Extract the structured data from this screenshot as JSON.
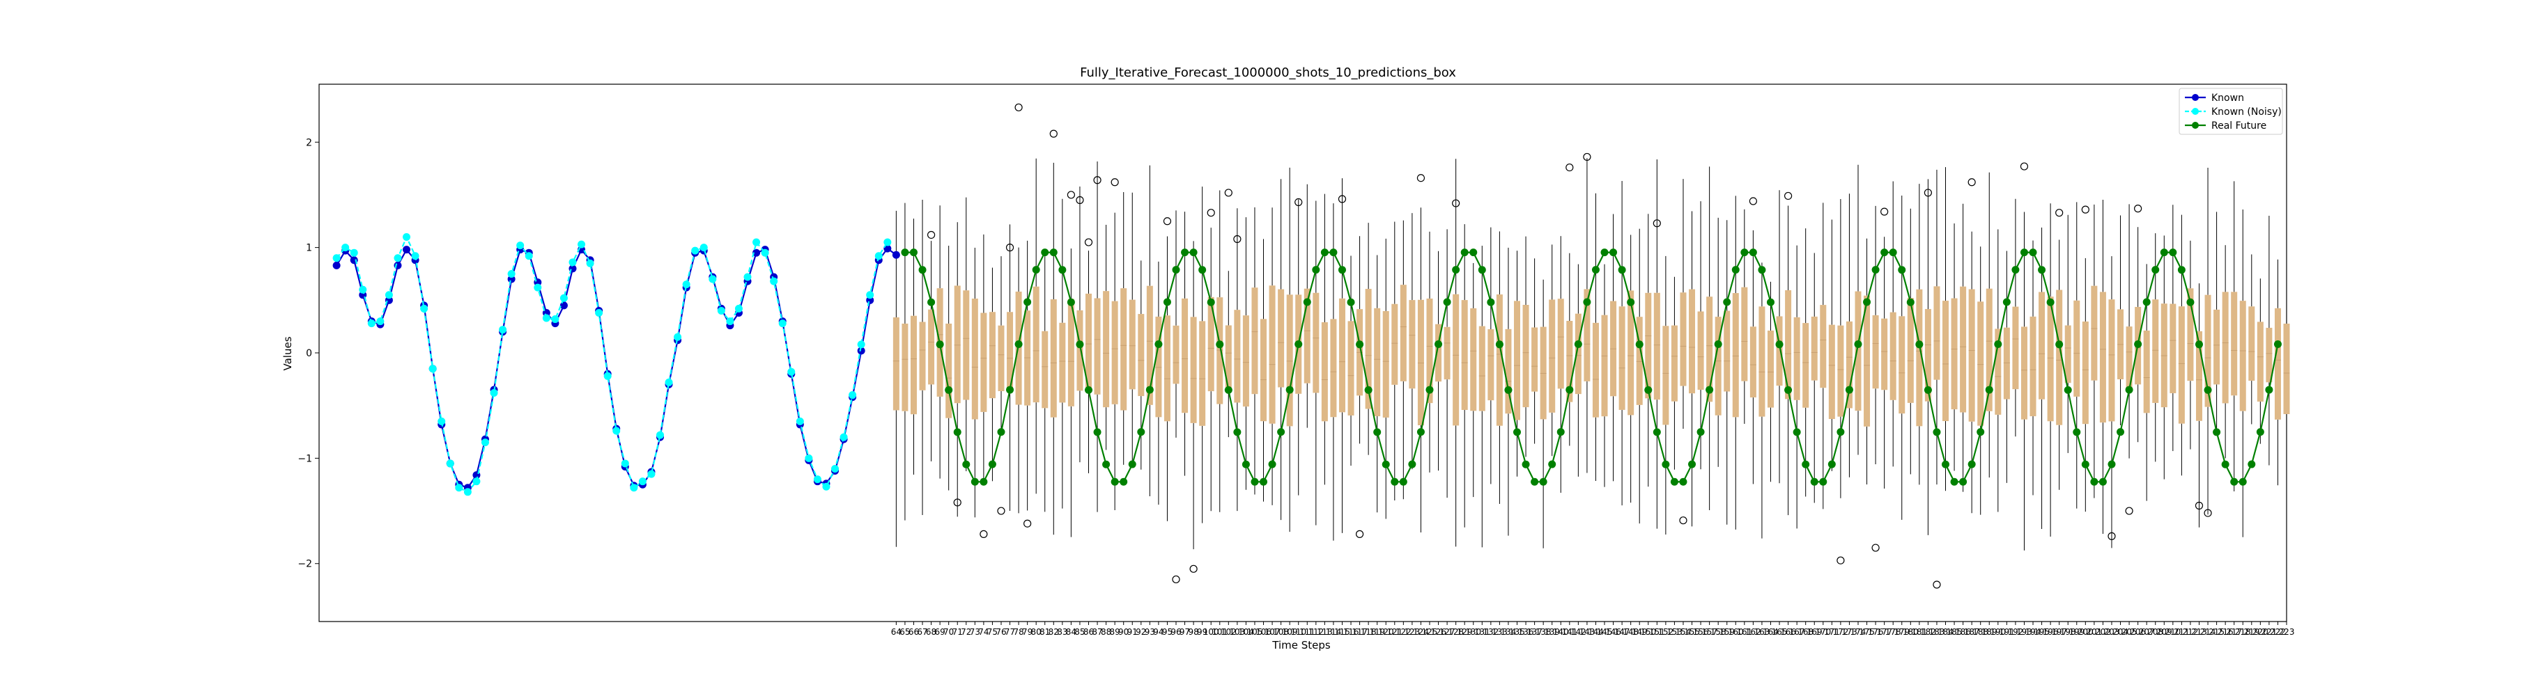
{
  "chart_data": {
    "type": "line",
    "title": "Fully_Iterative_Forecast_1000000_shots_10_predictions_box",
    "xlabel": "Time Steps",
    "ylabel": "Values",
    "ylim": [
      -2.55,
      2.55
    ],
    "y_ticks": [
      -2,
      -1,
      0,
      1,
      2
    ],
    "x_domain": [
      -2,
      223
    ],
    "x_tick_labels": {
      "start": 64,
      "end": 223
    },
    "grid": false,
    "legend": {
      "placement": "top-right",
      "entries": [
        "Known",
        "Known (Noisy)",
        "Real Future"
      ]
    },
    "series": [
      {
        "name": "Known",
        "color": "#0000cc",
        "marker": "circle",
        "style": "solid",
        "x": [
          0,
          1,
          2,
          3,
          4,
          5,
          6,
          7,
          8,
          9,
          10,
          11,
          12,
          13,
          14,
          15,
          16,
          17,
          18,
          19,
          20,
          21,
          22,
          23,
          24,
          25,
          26,
          27,
          28,
          29,
          30,
          31,
          32,
          33,
          34,
          35,
          36,
          37,
          38,
          39,
          40,
          41,
          42,
          43,
          44,
          45,
          46,
          47,
          48,
          49,
          50,
          51,
          52,
          53,
          54,
          55,
          56,
          57,
          58,
          59,
          60,
          61,
          62,
          63,
          64
        ],
        "y": [
          0.83,
          0.97,
          0.88,
          0.55,
          0.3,
          0.27,
          0.5,
          0.83,
          0.98,
          0.88,
          0.45,
          -0.15,
          -0.68,
          -1.05,
          -1.25,
          -1.28,
          -1.16,
          -0.82,
          -0.35,
          0.2,
          0.7,
          0.98,
          0.95,
          0.67,
          0.38,
          0.28,
          0.45,
          0.8,
          0.98,
          0.88,
          0.4,
          -0.2,
          -0.72,
          -1.08,
          -1.26,
          -1.25,
          -1.13,
          -0.8,
          -0.3,
          0.12,
          0.62,
          0.95,
          0.97,
          0.72,
          0.42,
          0.26,
          0.38,
          0.68,
          0.95,
          0.98,
          0.72,
          0.3,
          -0.2,
          -0.68,
          -1.02,
          -1.22,
          -1.24,
          -1.12,
          -0.82,
          -0.42,
          0.02,
          0.5,
          0.88,
          0.99,
          0.93
        ]
      },
      {
        "name": "Known (Noisy)",
        "color": "#00ffff",
        "marker": "circle",
        "style": "dashed",
        "x": [
          0,
          1,
          2,
          3,
          4,
          5,
          6,
          7,
          8,
          9,
          10,
          11,
          12,
          13,
          14,
          15,
          16,
          17,
          18,
          19,
          20,
          21,
          22,
          23,
          24,
          25,
          26,
          27,
          28,
          29,
          30,
          31,
          32,
          33,
          34,
          35,
          36,
          37,
          38,
          39,
          40,
          41,
          42,
          43,
          44,
          45,
          46,
          47,
          48,
          49,
          50,
          51,
          52,
          53,
          54,
          55,
          56,
          57,
          58,
          59,
          60,
          61,
          62,
          63
        ],
        "y": [
          0.9,
          1.0,
          0.95,
          0.6,
          0.28,
          0.3,
          0.55,
          0.9,
          1.1,
          0.92,
          0.42,
          -0.15,
          -0.65,
          -1.05,
          -1.28,
          -1.32,
          -1.22,
          -0.85,
          -0.38,
          0.22,
          0.75,
          1.02,
          0.92,
          0.62,
          0.33,
          0.32,
          0.52,
          0.86,
          1.03,
          0.85,
          0.38,
          -0.22,
          -0.74,
          -1.05,
          -1.28,
          -1.22,
          -1.15,
          -0.78,
          -0.28,
          0.15,
          0.65,
          0.97,
          1.0,
          0.7,
          0.4,
          0.3,
          0.42,
          0.72,
          1.05,
          0.95,
          0.68,
          0.28,
          -0.18,
          -0.65,
          -1.0,
          -1.2,
          -1.27,
          -1.1,
          -0.8,
          -0.4,
          0.08,
          0.55,
          0.92,
          1.05
        ]
      },
      {
        "name": "Real Future",
        "color": "#008000",
        "marker": "circle",
        "style": "solid",
        "x_start": 65,
        "x_end": 222,
        "period": 16.0,
        "amplitude": 1.11,
        "offset": -0.135,
        "phase_deg": 56.3
      }
    ],
    "box_whisker_summary": {
      "color": "#deb887",
      "whisker_color": "#000000",
      "x_start": 64,
      "x_end": 223,
      "box_range": [
        -0.8,
        0.8
      ],
      "whisker_range": [
        -2.2,
        1.9
      ],
      "outliers": [
        {
          "x": 68,
          "y": 1.12
        },
        {
          "x": 71,
          "y": -1.42
        },
        {
          "x": 74,
          "y": -1.72
        },
        {
          "x": 76,
          "y": -1.5
        },
        {
          "x": 77,
          "y": 1.0
        },
        {
          "x": 78,
          "y": 2.33
        },
        {
          "x": 79,
          "y": -1.62
        },
        {
          "x": 82,
          "y": 2.08
        },
        {
          "x": 84,
          "y": 1.5
        },
        {
          "x": 85,
          "y": 1.45
        },
        {
          "x": 86,
          "y": 1.05
        },
        {
          "x": 87,
          "y": 1.64
        },
        {
          "x": 89,
          "y": 1.62
        },
        {
          "x": 95,
          "y": 1.25
        },
        {
          "x": 96,
          "y": -2.15
        },
        {
          "x": 98,
          "y": -2.05
        },
        {
          "x": 100,
          "y": 1.33
        },
        {
          "x": 102,
          "y": 1.52
        },
        {
          "x": 103,
          "y": 1.08
        },
        {
          "x": 110,
          "y": 1.43
        },
        {
          "x": 115,
          "y": 1.46
        },
        {
          "x": 117,
          "y": -1.72
        },
        {
          "x": 124,
          "y": 1.66
        },
        {
          "x": 128,
          "y": 1.42
        },
        {
          "x": 141,
          "y": 1.76
        },
        {
          "x": 143,
          "y": 1.86
        },
        {
          "x": 151,
          "y": 1.23
        },
        {
          "x": 154,
          "y": -1.59
        },
        {
          "x": 162,
          "y": 1.44
        },
        {
          "x": 166,
          "y": 1.49
        },
        {
          "x": 172,
          "y": -1.97
        },
        {
          "x": 176,
          "y": -1.85
        },
        {
          "x": 177,
          "y": 1.34
        },
        {
          "x": 182,
          "y": 1.52
        },
        {
          "x": 183,
          "y": -2.2
        },
        {
          "x": 187,
          "y": 1.62
        },
        {
          "x": 193,
          "y": 1.77
        },
        {
          "x": 197,
          "y": 1.33
        },
        {
          "x": 200,
          "y": 1.36
        },
        {
          "x": 203,
          "y": -1.74
        },
        {
          "x": 205,
          "y": -1.5
        },
        {
          "x": 206,
          "y": 1.37
        },
        {
          "x": 213,
          "y": -1.45
        },
        {
          "x": 214,
          "y": -1.52
        }
      ]
    }
  }
}
